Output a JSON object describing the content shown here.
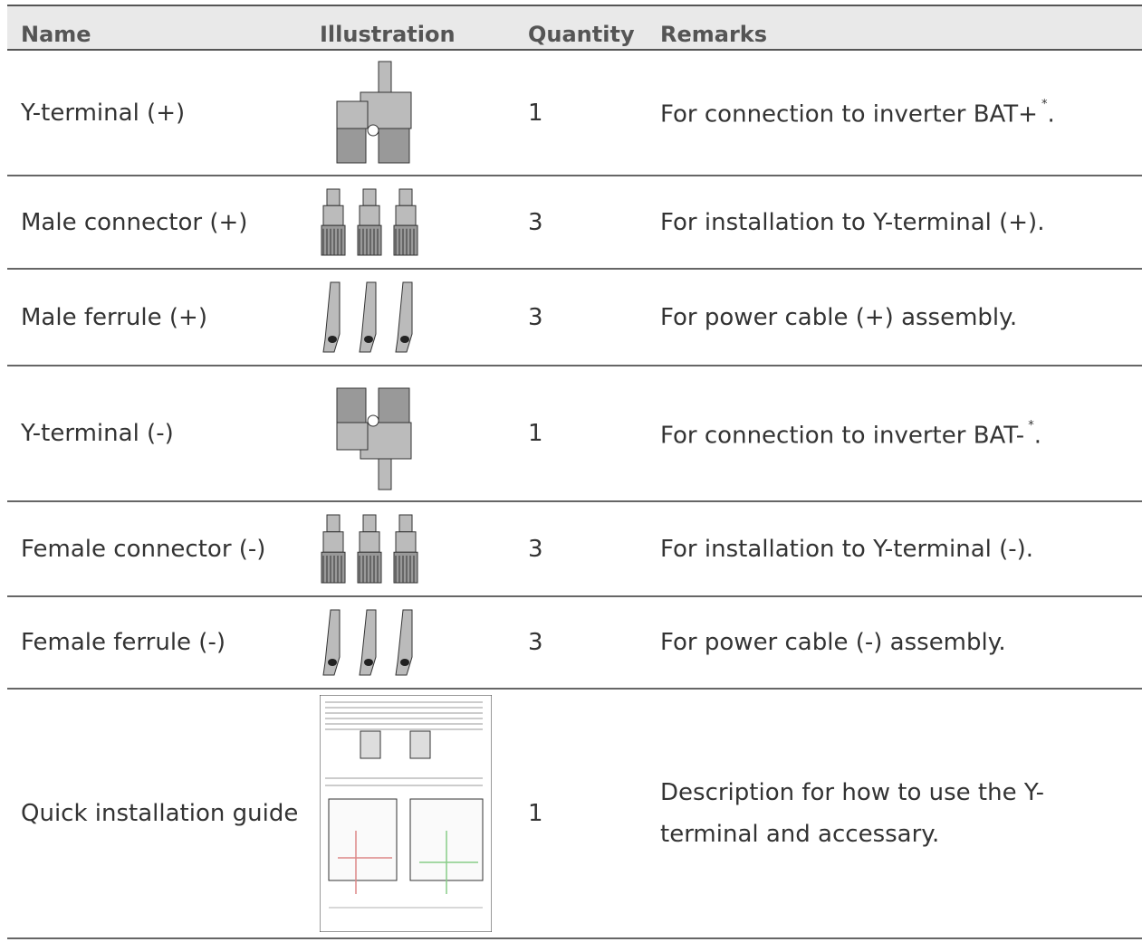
{
  "table": {
    "header": [
      "Name",
      "Illustration",
      "Quantity",
      "Remarks"
    ],
    "rows": [
      {
        "name": "Y-terminal (+)",
        "quantity": 1,
        "remarks": "For connection to inverter BAT+",
        "remarks_sup": "*",
        "remarks_end": "."
      },
      {
        "name": "Male connector (+)",
        "quantity": 3,
        "remarks": "For installation to Y-terminal (+)."
      },
      {
        "name": "Male ferrule (+)",
        "quantity": 3,
        "remarks": "For power cable (+) assembly."
      },
      {
        "name": "Y-terminal (-)",
        "quantity": 1,
        "remarks": "For connection to inverter BAT-",
        "remarks_sup": "*",
        "remarks_end": "."
      },
      {
        "name": "Female connector (-)",
        "quantity": 3,
        "remarks": "For installation to Y-terminal (-)."
      },
      {
        "name": "Female ferrule (-)",
        "quantity": 3,
        "remarks": "For power cable (-) assembly."
      },
      {
        "name": "Quick installation guide",
        "quantity": 1,
        "remarks": "Description for how to use the Y-terminal and accessary."
      }
    ]
  }
}
